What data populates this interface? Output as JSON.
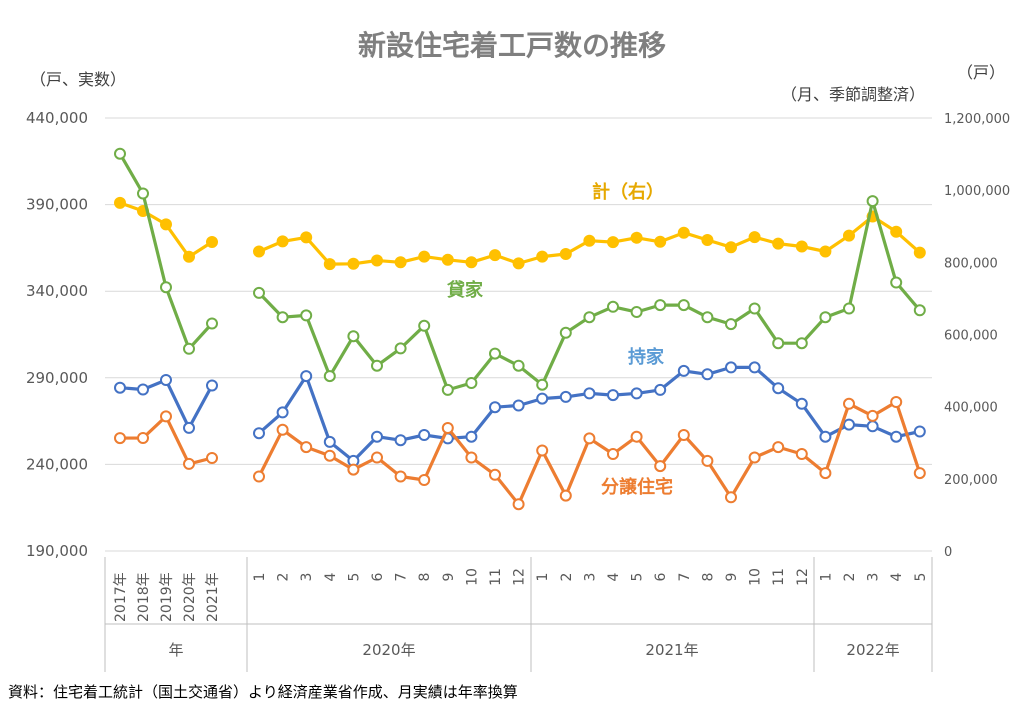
{
  "chart_data": {
    "type": "line",
    "title": "新設住宅着工戸数の推移",
    "y_left_unit": "（戸、実数）",
    "y_right_unit_top": "（戸）",
    "y_right_unit_note": "（月、季節調整済）",
    "y_left_ticks": [
      "440,000",
      "390,000",
      "340,000",
      "290,000",
      "240,000",
      "190,000"
    ],
    "y_right_ticks": [
      "1,200,000",
      "1,000,000",
      "800,000",
      "600,000",
      "400,000",
      "200,000",
      "0"
    ],
    "ylim_left": [
      190000,
      440000
    ],
    "ylim_right": [
      0,
      1200000
    ],
    "grid": true,
    "x_ticks": [
      "2017年",
      "2018年",
      "2019年",
      "2020年",
      "2021年",
      "1",
      "2",
      "3",
      "4",
      "5",
      "6",
      "7",
      "8",
      "9",
      "10",
      "11",
      "12",
      "1",
      "2",
      "3",
      "4",
      "5",
      "6",
      "7",
      "8",
      "9",
      "10",
      "11",
      "12",
      "1",
      "2",
      "3",
      "4",
      "5"
    ],
    "x_groups": [
      {
        "label": "年",
        "start": 0,
        "end": 4
      },
      {
        "label": "2020年",
        "start": 5,
        "end": 16
      },
      {
        "label": "2021年",
        "start": 17,
        "end": 28
      },
      {
        "label": "2022年",
        "start": 29,
        "end": 33
      }
    ],
    "series": [
      {
        "name": "計（右）",
        "axis": "right",
        "color": "#ffc000",
        "filled": true,
        "annual": [
          964641,
          942370,
          905123,
          815340,
          856484
        ],
        "monthly": [
          830000,
          858000,
          869000,
          795000,
          796000,
          805000,
          800000,
          816000,
          807000,
          800000,
          820000,
          797000,
          816000,
          823000,
          860000,
          856000,
          868000,
          857000,
          882000,
          862000,
          842000,
          870000,
          852000,
          844000,
          830000,
          874000,
          927000,
          885000,
          827000
        ]
      },
      {
        "name": "貸家",
        "axis": "left",
        "color": "#70ad47",
        "filled": false,
        "annual": [
          419397,
          396404,
          342289,
          306753,
          321376
        ],
        "monthly": [
          339000,
          325000,
          326000,
          291000,
          314000,
          297000,
          307000,
          320000,
          283000,
          287000,
          304000,
          297000,
          286000,
          316000,
          325000,
          331000,
          328000,
          332000,
          332000,
          325000,
          321000,
          330000,
          310000,
          310000,
          325000,
          330000,
          392000,
          345000,
          329000
        ]
      },
      {
        "name": "持家",
        "axis": "left",
        "color": "#4472c4",
        "filled": false,
        "annual": [
          284283,
          283235,
          288738,
          261088,
          285575
        ],
        "monthly": [
          258000,
          270000,
          291000,
          253000,
          242000,
          256000,
          254000,
          257000,
          255000,
          256000,
          273000,
          274000,
          278000,
          279000,
          281000,
          280000,
          281000,
          283000,
          294000,
          292000,
          296000,
          296000,
          284000,
          275000,
          256000,
          263000,
          262000,
          256000,
          259000
        ]
      },
      {
        "name": "分譲住宅",
        "axis": "left",
        "color": "#ed7d31",
        "filled": false,
        "annual": [
          255191,
          255263,
          267696,
          240268,
          243718
        ],
        "monthly": [
          233000,
          260000,
          250000,
          245000,
          237000,
          244000,
          233000,
          231000,
          261000,
          244000,
          234000,
          217000,
          248000,
          222000,
          255000,
          246000,
          256000,
          239000,
          257000,
          242000,
          221000,
          244000,
          250000,
          246000,
          235000,
          275000,
          268000,
          276000,
          235000
        ]
      }
    ],
    "source": "資料：住宅着工統計（国土交通省）より経済産業省作成、月実績は年率換算"
  }
}
